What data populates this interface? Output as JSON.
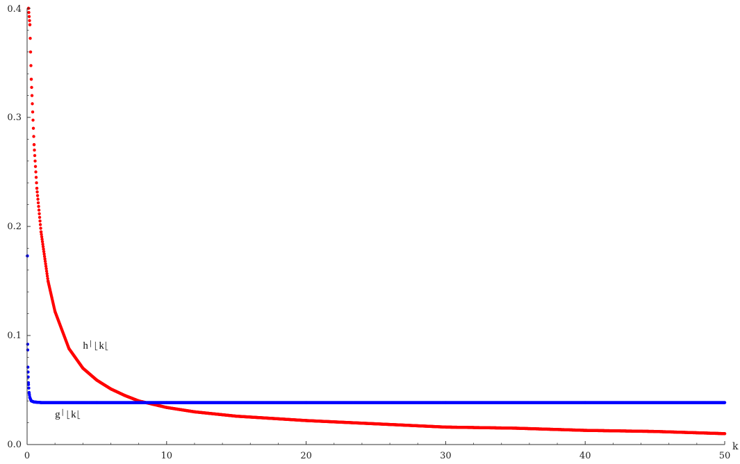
{
  "chart_data": {
    "type": "scatter",
    "xlabel": "k",
    "ylabel": "",
    "title": "",
    "xlim": [
      0,
      50
    ],
    "ylim": [
      0,
      0.4
    ],
    "x_ticks": [
      {
        "value": 0,
        "label": "0"
      },
      {
        "value": 10,
        "label": "10"
      },
      {
        "value": 20,
        "label": "20"
      },
      {
        "value": 30,
        "label": "30"
      },
      {
        "value": 40,
        "label": "40"
      },
      {
        "value": 50,
        "label": "50"
      }
    ],
    "y_ticks": [
      {
        "value": 0,
        "label": "0.0"
      },
      {
        "value": 0.1,
        "label": "0.1"
      },
      {
        "value": 0.2,
        "label": "0.2"
      },
      {
        "value": 0.3,
        "label": "0.3"
      },
      {
        "value": 0.4,
        "label": "0.4"
      }
    ],
    "grid": false,
    "series": [
      {
        "name": "h",
        "color": "#ff0000",
        "label_text": [
          "h",
          "k"
        ],
        "label_anchor": {
          "x": 4.0,
          "y": 0.088
        },
        "points": [
          {
            "x": 0.1,
            "y": 0.4
          },
          {
            "x": 0.2,
            "y": 0.385
          },
          {
            "x": 0.3,
            "y": 0.335
          },
          {
            "x": 0.5,
            "y": 0.275
          },
          {
            "x": 0.7,
            "y": 0.235
          },
          {
            "x": 1.0,
            "y": 0.195
          },
          {
            "x": 1.5,
            "y": 0.15
          },
          {
            "x": 2.0,
            "y": 0.122
          },
          {
            "x": 3.0,
            "y": 0.088
          },
          {
            "x": 4.0,
            "y": 0.07
          },
          {
            "x": 5.0,
            "y": 0.059
          },
          {
            "x": 6.0,
            "y": 0.051
          },
          {
            "x": 7.0,
            "y": 0.045
          },
          {
            "x": 8.0,
            "y": 0.04
          },
          {
            "x": 10.0,
            "y": 0.034
          },
          {
            "x": 12.0,
            "y": 0.03
          },
          {
            "x": 15.0,
            "y": 0.026
          },
          {
            "x": 20.0,
            "y": 0.022
          },
          {
            "x": 25.0,
            "y": 0.019
          },
          {
            "x": 30.0,
            "y": 0.016
          },
          {
            "x": 35.0,
            "y": 0.015
          },
          {
            "x": 40.0,
            "y": 0.013
          },
          {
            "x": 45.0,
            "y": 0.012
          },
          {
            "x": 50.0,
            "y": 0.01
          }
        ]
      },
      {
        "name": "g",
        "color": "#0000ff",
        "label_text": [
          "g",
          "k"
        ],
        "label_anchor": {
          "x": 2.0,
          "y": 0.025
        },
        "points": [
          {
            "x": 0.02,
            "y": 0.173
          },
          {
            "x": 0.04,
            "y": 0.092
          },
          {
            "x": 0.06,
            "y": 0.071
          },
          {
            "x": 0.08,
            "y": 0.062
          },
          {
            "x": 0.1,
            "y": 0.055
          },
          {
            "x": 0.15,
            "y": 0.047
          },
          {
            "x": 0.2,
            "y": 0.043
          },
          {
            "x": 0.3,
            "y": 0.04
          },
          {
            "x": 0.5,
            "y": 0.039
          },
          {
            "x": 1.0,
            "y": 0.0385
          },
          {
            "x": 5.0,
            "y": 0.0385
          },
          {
            "x": 10.0,
            "y": 0.0385
          },
          {
            "x": 20.0,
            "y": 0.0385
          },
          {
            "x": 30.0,
            "y": 0.0385
          },
          {
            "x": 40.0,
            "y": 0.0385
          },
          {
            "x": 50.0,
            "y": 0.0385
          }
        ]
      }
    ]
  }
}
